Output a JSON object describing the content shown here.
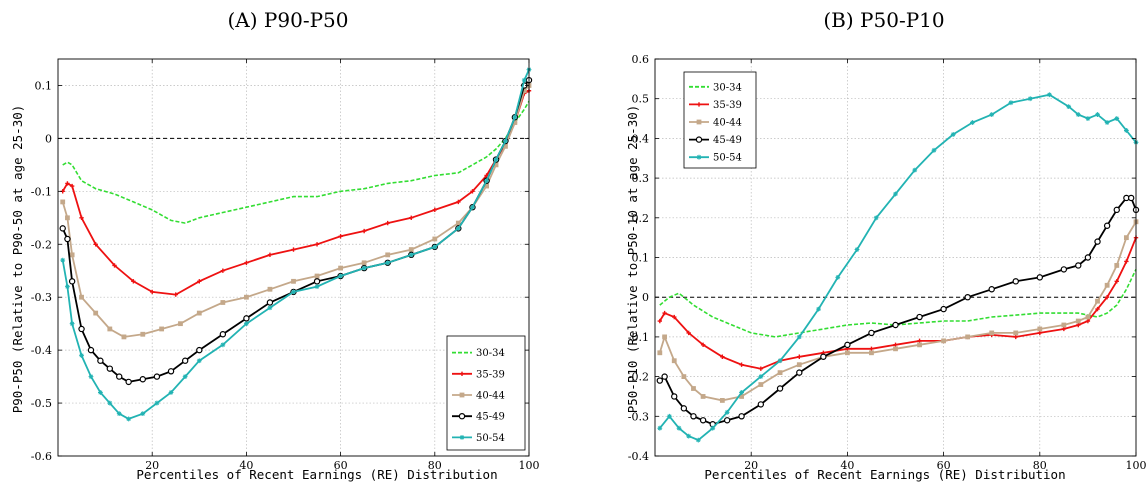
{
  "chart_data": [
    {
      "type": "line",
      "title": "(A) P90-P50",
      "xlabel": "Percentiles of Recent Earnings (RE) Distribution",
      "ylabel": "P90-P50 (Relative to P90-50 at age 25-30)",
      "xlim": [
        0,
        100
      ],
      "ylim": [
        -0.6,
        0.15
      ],
      "xticks": [
        "20",
        "40",
        "60",
        "80",
        "100"
      ],
      "yticks": [
        "-0.6",
        "-0.5",
        "-0.4",
        "-0.3",
        "-0.2",
        "-0.1",
        "0",
        "0.1"
      ],
      "ytick_values": [
        -0.6,
        -0.5,
        -0.4,
        -0.3,
        -0.2,
        -0.1,
        0,
        0.1
      ],
      "grid": true,
      "reference_line": 0,
      "legend_position": "lower-right",
      "series": [
        {
          "name": "30-34",
          "color": "#33dd33",
          "style": "dashed",
          "marker": "none",
          "x": [
            1,
            2,
            3,
            5,
            8,
            12,
            16,
            20,
            24,
            27,
            30,
            35,
            40,
            45,
            50,
            55,
            60,
            65,
            70,
            75,
            80,
            85,
            88,
            91,
            93,
            95,
            97,
            99,
            100
          ],
          "y": [
            -0.05,
            -0.045,
            -0.05,
            -0.08,
            -0.095,
            -0.105,
            -0.12,
            -0.135,
            -0.155,
            -0.16,
            -0.15,
            -0.14,
            -0.13,
            -0.12,
            -0.11,
            -0.11,
            -0.1,
            -0.095,
            -0.085,
            -0.08,
            -0.07,
            -0.065,
            -0.05,
            -0.035,
            -0.02,
            0.0,
            0.03,
            0.055,
            0.07
          ]
        },
        {
          "name": "35-39",
          "color": "#ee1111",
          "style": "solid",
          "marker": "cross",
          "x": [
            1,
            2,
            3,
            5,
            8,
            12,
            16,
            20,
            25,
            30,
            35,
            40,
            45,
            50,
            55,
            60,
            65,
            70,
            75,
            80,
            85,
            88,
            91,
            93,
            95,
            97,
            99,
            100
          ],
          "y": [
            -0.1,
            -0.085,
            -0.09,
            -0.15,
            -0.2,
            -0.24,
            -0.27,
            -0.29,
            -0.295,
            -0.27,
            -0.25,
            -0.235,
            -0.22,
            -0.21,
            -0.2,
            -0.185,
            -0.175,
            -0.16,
            -0.15,
            -0.135,
            -0.12,
            -0.1,
            -0.07,
            -0.04,
            -0.01,
            0.03,
            0.085,
            0.09
          ]
        },
        {
          "name": "40-44",
          "color": "#c4a88a",
          "style": "solid",
          "marker": "square",
          "x": [
            1,
            2,
            3,
            5,
            8,
            11,
            14,
            18,
            22,
            26,
            30,
            35,
            40,
            45,
            50,
            55,
            60,
            65,
            70,
            75,
            80,
            85,
            88,
            91,
            93,
            95,
            97,
            99,
            100
          ],
          "y": [
            -0.12,
            -0.15,
            -0.22,
            -0.3,
            -0.33,
            -0.36,
            -0.375,
            -0.37,
            -0.36,
            -0.35,
            -0.33,
            -0.31,
            -0.3,
            -0.285,
            -0.27,
            -0.26,
            -0.245,
            -0.235,
            -0.22,
            -0.21,
            -0.19,
            -0.16,
            -0.13,
            -0.09,
            -0.05,
            -0.015,
            0.03,
            0.09,
            0.1
          ]
        },
        {
          "name": "45-49",
          "color": "#000000",
          "style": "solid",
          "marker": "circle",
          "x": [
            1,
            2,
            3,
            5,
            7,
            9,
            11,
            13,
            15,
            18,
            21,
            24,
            27,
            30,
            35,
            40,
            45,
            50,
            55,
            60,
            65,
            70,
            75,
            80,
            85,
            88,
            91,
            93,
            95,
            97,
            99,
            100
          ],
          "y": [
            -0.17,
            -0.19,
            -0.27,
            -0.36,
            -0.4,
            -0.42,
            -0.435,
            -0.45,
            -0.46,
            -0.455,
            -0.45,
            -0.44,
            -0.42,
            -0.4,
            -0.37,
            -0.34,
            -0.31,
            -0.29,
            -0.27,
            -0.26,
            -0.245,
            -0.235,
            -0.22,
            -0.205,
            -0.17,
            -0.13,
            -0.08,
            -0.04,
            -0.005,
            0.04,
            0.1,
            0.11
          ]
        },
        {
          "name": "50-54",
          "color": "#22b3b3",
          "style": "solid",
          "marker": "star",
          "x": [
            1,
            2,
            3,
            5,
            7,
            9,
            11,
            13,
            15,
            18,
            21,
            24,
            27,
            30,
            35,
            40,
            45,
            50,
            55,
            60,
            65,
            70,
            75,
            80,
            85,
            88,
            91,
            93,
            95,
            97,
            99,
            100
          ],
          "y": [
            -0.23,
            -0.28,
            -0.35,
            -0.41,
            -0.45,
            -0.48,
            -0.5,
            -0.52,
            -0.53,
            -0.52,
            -0.5,
            -0.48,
            -0.45,
            -0.42,
            -0.39,
            -0.35,
            -0.32,
            -0.29,
            -0.28,
            -0.26,
            -0.245,
            -0.235,
            -0.22,
            -0.205,
            -0.17,
            -0.13,
            -0.08,
            -0.04,
            -0.005,
            0.04,
            0.11,
            0.13
          ]
        }
      ]
    },
    {
      "type": "line",
      "title": "(B) P50-P10",
      "xlabel": "Percentiles of Recent Earnings (RE) Distribution",
      "ylabel": "P50-P10 (Relative to P50-10 at age 25-30)",
      "xlim": [
        0,
        100
      ],
      "ylim": [
        -0.4,
        0.6
      ],
      "xticks": [
        "20",
        "40",
        "60",
        "80",
        "100"
      ],
      "yticks": [
        "-0.4",
        "-0.3",
        "-0.2",
        "-0.1",
        "0",
        "0.1",
        "0.2",
        "0.3",
        "0.4",
        "0.5",
        "0.6"
      ],
      "ytick_values": [
        -0.4,
        -0.3,
        -0.2,
        -0.1,
        0,
        0.1,
        0.2,
        0.3,
        0.4,
        0.5,
        0.6
      ],
      "grid": true,
      "reference_line": 0,
      "legend_position": "top-left",
      "series": [
        {
          "name": "30-34",
          "color": "#33dd33",
          "style": "dashed",
          "marker": "none",
          "x": [
            1,
            3,
            5,
            8,
            12,
            16,
            20,
            25,
            30,
            35,
            40,
            45,
            50,
            55,
            60,
            65,
            70,
            75,
            80,
            85,
            88,
            90,
            92,
            94,
            96,
            98,
            100
          ],
          "y": [
            -0.02,
            0.0,
            0.01,
            -0.02,
            -0.05,
            -0.07,
            -0.09,
            -0.1,
            -0.09,
            -0.08,
            -0.07,
            -0.065,
            -0.07,
            -0.065,
            -0.06,
            -0.06,
            -0.05,
            -0.045,
            -0.04,
            -0.04,
            -0.04,
            -0.045,
            -0.05,
            -0.04,
            -0.02,
            0.02,
            0.07
          ]
        },
        {
          "name": "35-39",
          "color": "#ee1111",
          "style": "solid",
          "marker": "cross",
          "x": [
            1,
            2,
            4,
            7,
            10,
            14,
            18,
            22,
            26,
            30,
            35,
            40,
            45,
            50,
            55,
            60,
            65,
            70,
            75,
            80,
            85,
            88,
            90,
            92,
            94,
            96,
            98,
            100
          ],
          "y": [
            -0.06,
            -0.04,
            -0.05,
            -0.09,
            -0.12,
            -0.15,
            -0.17,
            -0.18,
            -0.16,
            -0.15,
            -0.14,
            -0.13,
            -0.13,
            -0.12,
            -0.11,
            -0.11,
            -0.1,
            -0.095,
            -0.1,
            -0.09,
            -0.08,
            -0.07,
            -0.06,
            -0.03,
            0.0,
            0.04,
            0.09,
            0.15
          ]
        },
        {
          "name": "40-44",
          "color": "#c4a88a",
          "style": "solid",
          "marker": "square",
          "x": [
            1,
            2,
            4,
            6,
            8,
            10,
            14,
            18,
            22,
            26,
            30,
            35,
            40,
            45,
            50,
            55,
            60,
            65,
            70,
            75,
            80,
            85,
            88,
            90,
            92,
            94,
            96,
            98,
            100
          ],
          "y": [
            -0.14,
            -0.1,
            -0.16,
            -0.2,
            -0.23,
            -0.25,
            -0.26,
            -0.25,
            -0.22,
            -0.19,
            -0.17,
            -0.15,
            -0.14,
            -0.14,
            -0.13,
            -0.12,
            -0.11,
            -0.1,
            -0.09,
            -0.09,
            -0.08,
            -0.07,
            -0.06,
            -0.05,
            -0.01,
            0.03,
            0.08,
            0.15,
            0.19
          ]
        },
        {
          "name": "45-49",
          "color": "#000000",
          "style": "solid",
          "marker": "circle",
          "x": [
            1,
            2,
            4,
            6,
            8,
            10,
            12,
            15,
            18,
            22,
            26,
            30,
            35,
            40,
            45,
            50,
            55,
            60,
            65,
            70,
            75,
            80,
            85,
            88,
            90,
            92,
            94,
            96,
            98,
            99,
            100
          ],
          "y": [
            -0.21,
            -0.2,
            -0.25,
            -0.28,
            -0.3,
            -0.31,
            -0.32,
            -0.31,
            -0.3,
            -0.27,
            -0.23,
            -0.19,
            -0.15,
            -0.12,
            -0.09,
            -0.07,
            -0.05,
            -0.03,
            0.0,
            0.02,
            0.04,
            0.05,
            0.07,
            0.08,
            0.1,
            0.14,
            0.18,
            0.22,
            0.25,
            0.25,
            0.22
          ]
        },
        {
          "name": "50-54",
          "color": "#22b3b3",
          "style": "solid",
          "marker": "star",
          "x": [
            1,
            3,
            5,
            7,
            9,
            12,
            15,
            18,
            22,
            26,
            30,
            34,
            38,
            42,
            46,
            50,
            54,
            58,
            62,
            66,
            70,
            74,
            78,
            82,
            86,
            88,
            90,
            92,
            94,
            96,
            98,
            100
          ],
          "y": [
            -0.33,
            -0.3,
            -0.33,
            -0.35,
            -0.36,
            -0.33,
            -0.29,
            -0.24,
            -0.2,
            -0.16,
            -0.1,
            -0.03,
            0.05,
            0.12,
            0.2,
            0.26,
            0.32,
            0.37,
            0.41,
            0.44,
            0.46,
            0.49,
            0.5,
            0.51,
            0.48,
            0.46,
            0.45,
            0.46,
            0.44,
            0.45,
            0.42,
            0.39
          ]
        }
      ]
    }
  ]
}
